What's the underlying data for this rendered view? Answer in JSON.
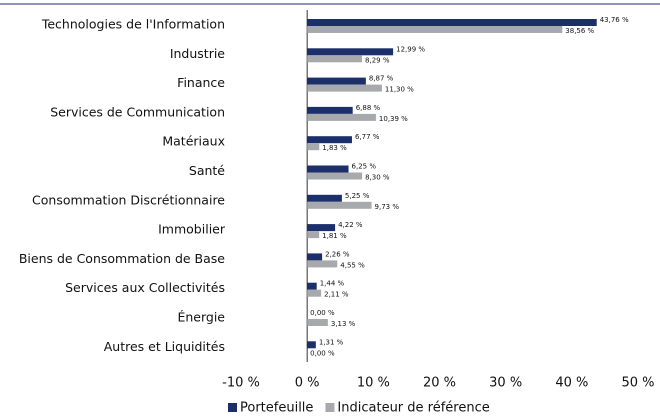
{
  "chart_data": {
    "type": "bar",
    "orientation": "horizontal",
    "categories": [
      "Technologies de l'Information",
      "Industrie",
      "Finance",
      "Services de Communication",
      "Matériaux",
      "Santé",
      "Consommation Discrétionnaire",
      "Immobilier",
      "Biens de Consommation de Base",
      "Services aux Collectivités",
      "Énergie",
      "Autres et Liquidités"
    ],
    "series": [
      {
        "name": "Portefeuille",
        "color": "#1b2f6b",
        "values": [
          43.76,
          12.99,
          8.87,
          6.88,
          6.77,
          6.25,
          5.25,
          4.22,
          2.26,
          1.44,
          0,
          1.31
        ],
        "value_labels": [
          "43,76 %",
          "12,99 %",
          "8,87 %",
          "6,88 %",
          "6,77 %",
          "6,25 %",
          "5,25 %",
          "4,22 %",
          "2,26 %",
          "1,44 %",
          "0,00 %",
          "1,31 %"
        ]
      },
      {
        "name": "Indicateur de référence",
        "color": "#a7a9ac",
        "values": [
          38.56,
          8.29,
          11.3,
          10.39,
          1.83,
          8.3,
          9.73,
          1.81,
          4.55,
          2.11,
          3.13,
          0
        ],
        "value_labels": [
          "38,56 %",
          "8,29 %",
          "11,30 %",
          "10,39 %",
          "1,83 %",
          "8,30 %",
          "9,73 %",
          "1,81 %",
          "4,55 %",
          "2,11 %",
          "3,13 %",
          "0,00 %"
        ]
      }
    ],
    "xlim": [
      -10,
      50
    ],
    "xticks": [
      {
        "value": -10,
        "label": "-10 %"
      },
      {
        "value": 0,
        "label": "0 %"
      },
      {
        "value": 10,
        "label": "10 %"
      },
      {
        "value": 20,
        "label": "20 %"
      },
      {
        "value": 30,
        "label": "30 %"
      },
      {
        "value": 40,
        "label": "40 %"
      },
      {
        "value": 50,
        "label": "50 %"
      }
    ],
    "grid": false,
    "legend": "bottom"
  }
}
